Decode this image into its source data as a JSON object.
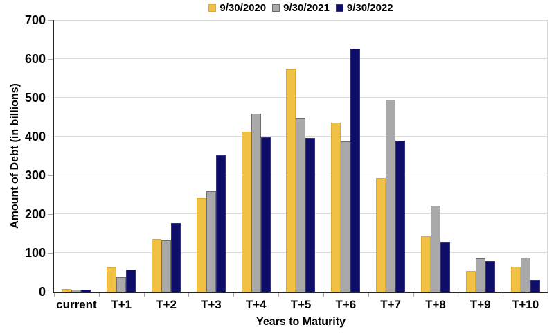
{
  "chart_data": {
    "type": "bar",
    "title": "",
    "categories": [
      "current",
      "T+1",
      "T+2",
      "T+3",
      "T+4",
      "T+5",
      "T+6",
      "T+7",
      "T+8",
      "T+9",
      "T+10"
    ],
    "series": [
      {
        "name": "9/30/2020",
        "color": "#F0C144",
        "border_color": "#DFA92E",
        "values": [
          8,
          63,
          136,
          241,
          413,
          573,
          435,
          292,
          143,
          54,
          64
        ]
      },
      {
        "name": "9/30/2021",
        "color": "#A9A9A9",
        "border_color": "#6E6E6E",
        "values": [
          5,
          38,
          133,
          259,
          459,
          447,
          387,
          495,
          221,
          85,
          87
        ]
      },
      {
        "name": "9/30/2022",
        "color": "#0E0E68",
        "border_color": "#32327E",
        "values": [
          6,
          57,
          176,
          352,
          399,
          397,
          626,
          390,
          128,
          78,
          31
        ]
      }
    ],
    "xlabel": "Years to Maturity",
    "ylabel": "Amount of Debt (in billions)",
    "ylim": [
      0,
      700
    ],
    "ytick_step": 100,
    "grid": true,
    "legend_position": "top",
    "colors": {
      "grid": "#D9D9D9",
      "axis": "#262626",
      "tick": "#A6A6A6",
      "text": "#000000",
      "background": "#FFFFFF"
    }
  }
}
